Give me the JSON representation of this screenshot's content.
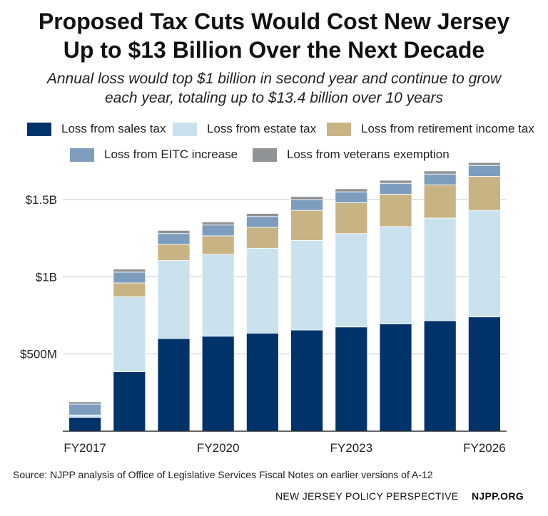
{
  "title_lines": [
    "Proposed Tax Cuts Would Cost New Jersey",
    "Up to $13 Billion Over the Next Decade"
  ],
  "subtitle_lines": [
    "Annual loss would top $1 billion in second year and continue to grow",
    "each year, totaling up to $13.4 billion over 10 years"
  ],
  "source": "Source: NJPP analysis of Office of Legislative Services Fiscal Notes on earlier versions of A-12",
  "footer": {
    "org": "NEW JERSEY POLICY PERSPECTIVE",
    "site": "NJPP.ORG"
  },
  "colors": {
    "sales": "#00336a",
    "estate": "#c9e2ee",
    "retirement": "#c8b384",
    "eitc": "#7d9dbf",
    "veterans": "#8f9396",
    "grid": "#c8c8c8",
    "axis": "#333333"
  },
  "chart_data": {
    "type": "bar",
    "stacked": true,
    "title": "Proposed Tax Cuts Would Cost New Jersey Up to $13 Billion Over the Next Decade",
    "subtitle": "Annual loss would top $1 billion in second year and continue to grow each year, totaling up to $13.4 billion over 10 years",
    "xlabel": "",
    "ylabel": "",
    "ylim": [
      0,
      1750000000
    ],
    "grid": true,
    "legend_position": "top",
    "y_ticks": [
      {
        "value": 500000000,
        "label": "$500M"
      },
      {
        "value": 1000000000,
        "label": "$1B"
      },
      {
        "value": 1500000000,
        "label": "$1.5B"
      }
    ],
    "categories": [
      "FY2017",
      "FY2018",
      "FY2019",
      "FY2020",
      "FY2021",
      "FY2022",
      "FY2023",
      "FY2024",
      "FY2025",
      "FY2026"
    ],
    "x_tick_labels": [
      "FY2017",
      "",
      "",
      "FY2020",
      "",
      "",
      "FY2023",
      "",
      "",
      "FY2026"
    ],
    "series": [
      {
        "name": "Loss from sales tax",
        "color_key": "sales",
        "values": [
          90000000,
          385000000,
          600000000,
          615000000,
          635000000,
          655000000,
          675000000,
          695000000,
          715000000,
          740000000
        ]
      },
      {
        "name": "Loss from estate tax",
        "color_key": "estate",
        "values": [
          15000000,
          485000000,
          505000000,
          530000000,
          550000000,
          580000000,
          605000000,
          630000000,
          665000000,
          690000000
        ]
      },
      {
        "name": "Loss from retirement income tax",
        "color_key": "retirement",
        "values": [
          0,
          90000000,
          105000000,
          120000000,
          135000000,
          195000000,
          200000000,
          210000000,
          215000000,
          220000000
        ]
      },
      {
        "name": "Loss from EITC increase",
        "color_key": "eitc",
        "values": [
          70000000,
          70000000,
          70000000,
          70000000,
          70000000,
          70000000,
          70000000,
          70000000,
          70000000,
          70000000
        ]
      },
      {
        "name": "Loss from veterans exemption",
        "color_key": "veterans",
        "values": [
          15000000,
          20000000,
          20000000,
          20000000,
          20000000,
          20000000,
          20000000,
          20000000,
          20000000,
          20000000
        ]
      }
    ]
  }
}
